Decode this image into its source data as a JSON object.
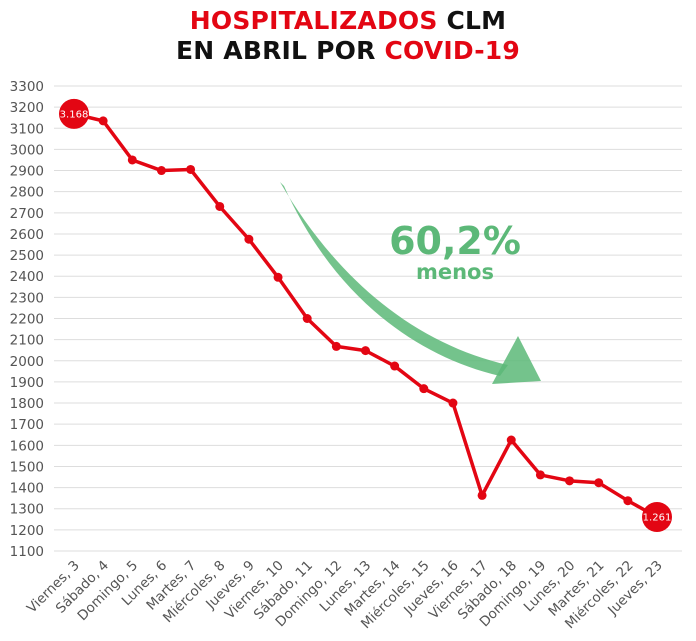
{
  "title": {
    "line1_part1": "HOSPITALIZADOS",
    "line1_part2": " CLM",
    "line2_part1": "EN ABRIL POR ",
    "line2_part2": "COVID-19"
  },
  "colors": {
    "line": "#e30613",
    "accent_text": "#e30613",
    "arrow": "#5cb878",
    "grid": "#dddddd"
  },
  "annotation": {
    "percent": "60,2%",
    "label": "menos",
    "arrow_icon": "curved-down-arrow-icon"
  },
  "chart_data": {
    "type": "line",
    "title": "HOSPITALIZADOS CLM EN ABRIL POR COVID-19",
    "xlabel": "",
    "ylabel": "",
    "ylim": [
      1100,
      3300
    ],
    "yticks": [
      1100,
      1200,
      1300,
      1400,
      1500,
      1600,
      1700,
      1800,
      1900,
      2000,
      2100,
      2200,
      2300,
      2400,
      2500,
      2600,
      2700,
      2800,
      2900,
      3000,
      3100,
      3200,
      3300
    ],
    "grid": true,
    "legend": "none",
    "categories": [
      "Viernes, 3",
      "Sábado, 4",
      "Domingo, 5",
      "Lunes, 6",
      "Martes, 7",
      "Miércoles, 8",
      "Jueves, 9",
      "Viernes, 10",
      "Sábado, 11",
      "Domingo, 12",
      "Lunes, 13",
      "Martes, 14",
      "Miércoles, 15",
      "Jueves, 16",
      "Viernes, 17",
      "Sábado, 18",
      "Domingo, 19",
      "Lunes, 20",
      "Martes, 21",
      "Miércoles, 22",
      "Jueves, 23"
    ],
    "series": [
      {
        "values": [
          3168,
          3135,
          2950,
          2900,
          2905,
          2730,
          2575,
          2395,
          2200,
          2068,
          2048,
          1975,
          1868,
          1800,
          1363,
          1625,
          1460,
          1432,
          1423,
          1338,
          1261
        ]
      }
    ],
    "data_labels": [
      {
        "index": 0,
        "text": "3.168"
      },
      {
        "index": 20,
        "text": "1.261"
      }
    ]
  }
}
